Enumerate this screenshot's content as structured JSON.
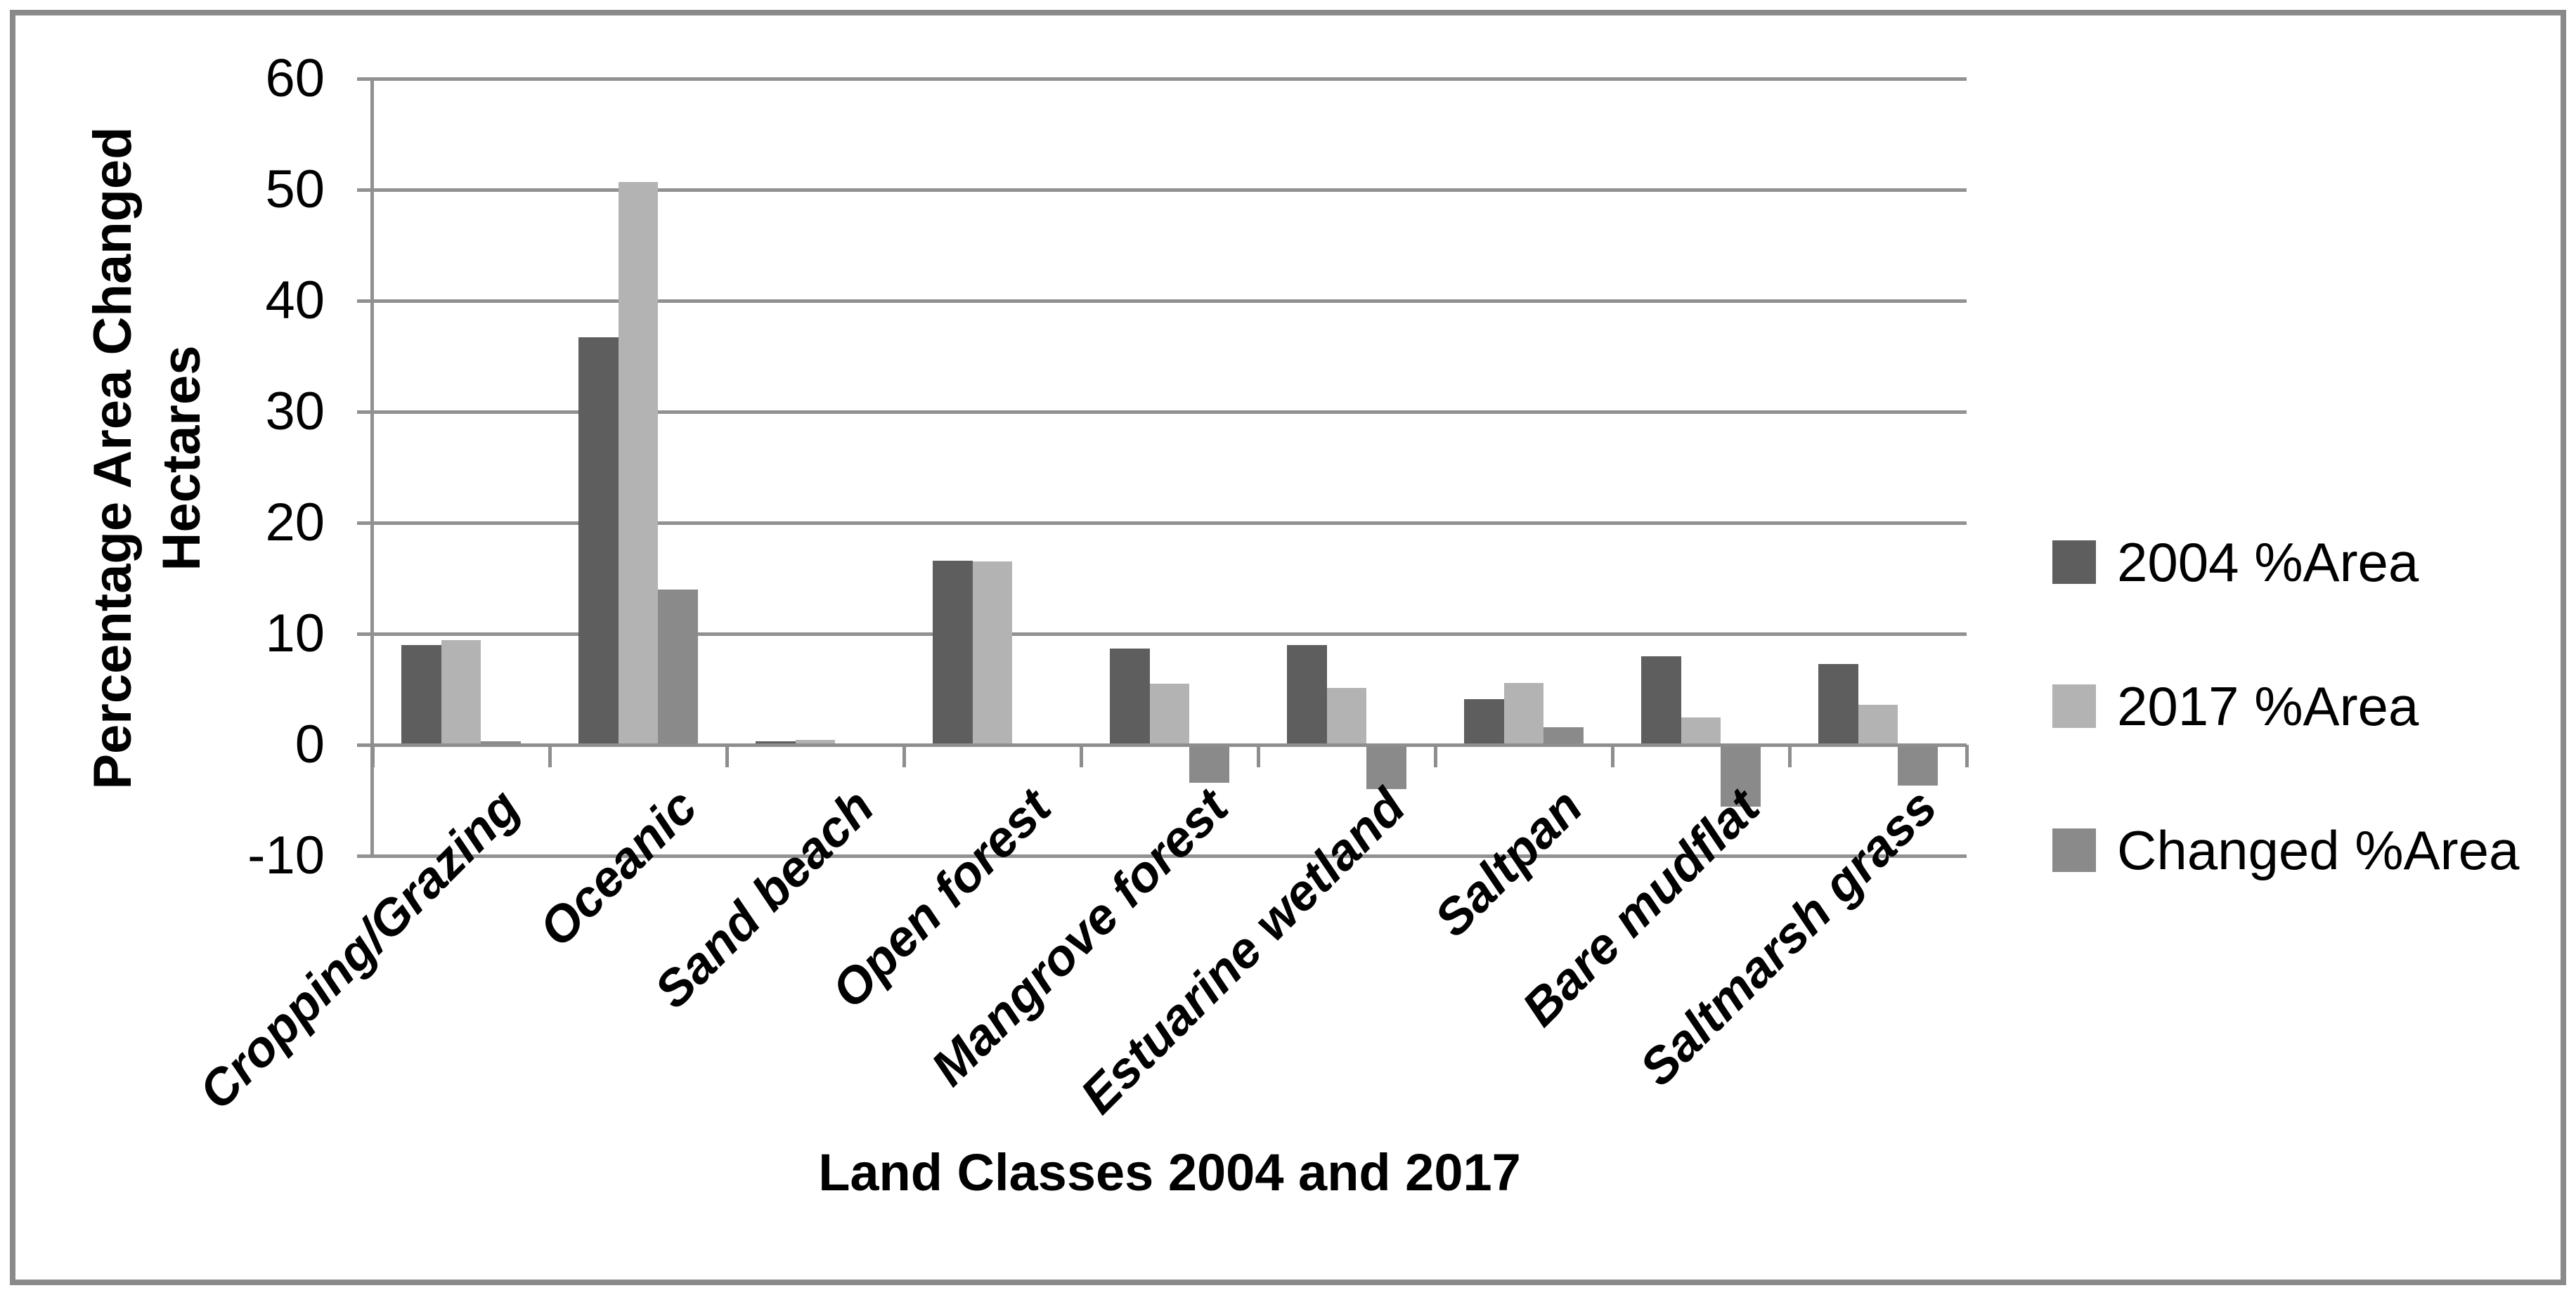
{
  "figure": {
    "background_color": "#ffffff",
    "border_color": "#8a8a8a",
    "gridline_color": "#919191",
    "axis_line_color": "#8e8e8e",
    "text_color": "#000000"
  },
  "chart_data": {
    "type": "bar",
    "title": "",
    "categories": [
      "Cropping/Grazing",
      "Oceanic",
      "Sand beach",
      "Open forest",
      "Mangrove forest",
      "Estuarine wetland",
      "Saltpan",
      "Bare mudflat",
      "Saltmarsh grass"
    ],
    "series": [
      {
        "name": "2004 %Area",
        "color": "#5e5e5e",
        "values": [
          9.0,
          36.7,
          0.3,
          16.6,
          8.7,
          9.0,
          4.1,
          8.0,
          7.3
        ]
      },
      {
        "name": "2017 %Area",
        "color": "#b3b3b3",
        "values": [
          9.4,
          50.7,
          0.45,
          16.5,
          5.5,
          5.1,
          5.6,
          2.5,
          3.6
        ]
      },
      {
        "name": "Changed %Area",
        "color": "#8a8a8a",
        "values": [
          0.3,
          14.0,
          0.0,
          0.0,
          -3.4,
          -4.0,
          1.6,
          -5.6,
          -3.7
        ]
      }
    ],
    "xlabel": "Land Classes 2004 and 2017",
    "ylabel_line1": "Percentage Area Changed",
    "ylabel_line2": "Hectares",
    "ylim": [
      -10,
      60
    ],
    "yticks": [
      60,
      50,
      40,
      30,
      20,
      10,
      0,
      -10
    ],
    "grid": true,
    "legend_position": "right",
    "legend_items": [
      "2004 %Area",
      "2017 %Area",
      "Changed %Area"
    ]
  }
}
